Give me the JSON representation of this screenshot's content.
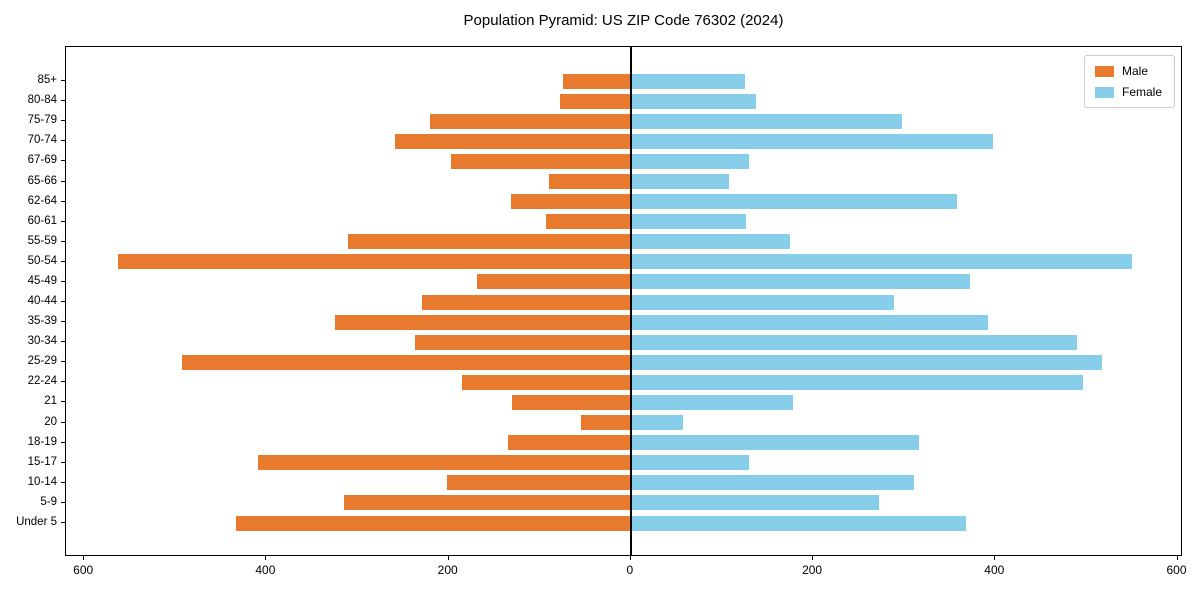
{
  "title": "Population Pyramid: US ZIP Code 76302 (2024)",
  "colors": {
    "male": "#e87a30",
    "female": "#87ceeb",
    "axis": "#000000",
    "legend_border": "#cccccc"
  },
  "legend": {
    "male_label": "Male",
    "female_label": "Female",
    "position": "upper right"
  },
  "x_axis": {
    "tick_labels": [
      "600",
      "400",
      "200",
      "0",
      "200",
      "400",
      "600"
    ]
  },
  "chart_data": {
    "type": "bar",
    "variant": "population-pyramid",
    "title": "Population Pyramid: US ZIP Code 76302 (2024)",
    "categories": [
      "85+",
      "80-84",
      "75-79",
      "70-74",
      "67-69",
      "65-66",
      "62-64",
      "60-61",
      "55-59",
      "50-54",
      "45-49",
      "40-44",
      "35-39",
      "30-34",
      "25-29",
      "22-24",
      "21",
      "20",
      "18-19",
      "15-17",
      "10-14",
      "5-9",
      "Under 5"
    ],
    "series": [
      {
        "name": "Male",
        "side": "left",
        "color": "#e87a30",
        "values": [
          75,
          78,
          220,
          259,
          198,
          90,
          132,
          93,
          310,
          563,
          169,
          229,
          325,
          237,
          493,
          185,
          130,
          55,
          135,
          409,
          202,
          315,
          433
        ]
      },
      {
        "name": "Female",
        "side": "right",
        "color": "#87ceeb",
        "values": [
          125,
          137,
          298,
          397,
          130,
          108,
          358,
          126,
          175,
          550,
          372,
          289,
          392,
          490,
          517,
          496,
          178,
          57,
          316,
          130,
          311,
          272,
          368
        ]
      }
    ],
    "xlabel": "",
    "ylabel": "",
    "xlim": [
      -620,
      606
    ],
    "x_tick_values": [
      -600,
      -400,
      -200,
      0,
      200,
      400,
      600
    ],
    "x_tick_labels": [
      "600",
      "400",
      "200",
      "0",
      "200",
      "400",
      "600"
    ],
    "legend_position": "upper right",
    "grid": false
  }
}
